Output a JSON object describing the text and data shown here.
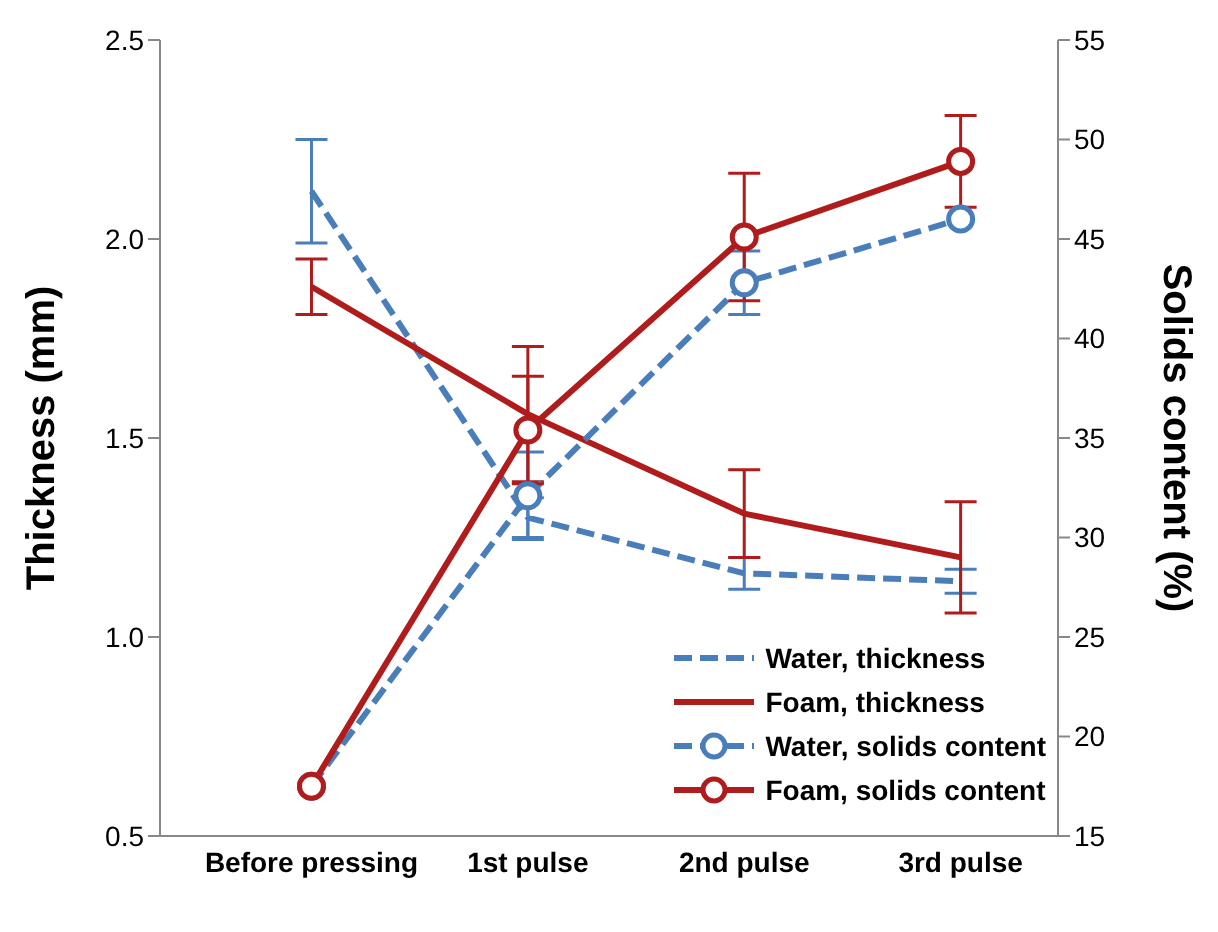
{
  "chart_data": {
    "type": "line",
    "categories": [
      "Before pressing",
      "1st pulse",
      "2nd pulse",
      "3rd pulse"
    ],
    "ylabel": "Thickness (mm)",
    "y2label": "Solids content (%)",
    "ylim": [
      0.5,
      2.5
    ],
    "yticks": [
      {
        "value": 0.5,
        "label": "0.5"
      },
      {
        "value": 1.0,
        "label": "1.0"
      },
      {
        "value": 1.5,
        "label": "1.5"
      },
      {
        "value": 2.0,
        "label": "2.0"
      },
      {
        "value": 2.5,
        "label": "2.5"
      }
    ],
    "y2lim": [
      15,
      55
    ],
    "y2ticks": [
      15,
      20,
      25,
      30,
      35,
      40,
      45,
      50,
      55
    ],
    "legend": "bottom right",
    "grid": false,
    "series": [
      {
        "name": "Water, thickness",
        "color": "#4a7ebb",
        "values": [
          2.12,
          1.3,
          1.16,
          1.14
        ],
        "errors": [
          0.13,
          0.05,
          0.04,
          0.03
        ],
        "line_style": "dashed",
        "marker": "none"
      },
      {
        "name": "Foam, thickness",
        "color": "#b01c1c",
        "values": [
          1.88,
          1.56,
          1.31,
          1.2
        ],
        "errors": [
          0.07,
          0.17,
          0.11,
          0.14
        ],
        "line_style": "solid",
        "marker": "none"
      },
      {
        "name": "Water, solids content",
        "color": "#4a7ebb",
        "values": [
          17.5,
          32.1,
          42.8,
          46.0
        ],
        "errors": [
          null,
          2.2,
          1.6,
          null
        ],
        "axis": "y2",
        "line_style": "dashed",
        "marker": "circle"
      },
      {
        "name": "Foam, solids content",
        "color": "#b01c1c",
        "values": [
          17.5,
          35.4,
          45.1,
          48.9
        ],
        "errors": [
          null,
          2.7,
          3.2,
          2.3
        ],
        "axis": "y2",
        "line_style": "solid",
        "marker": "circle"
      }
    ]
  }
}
